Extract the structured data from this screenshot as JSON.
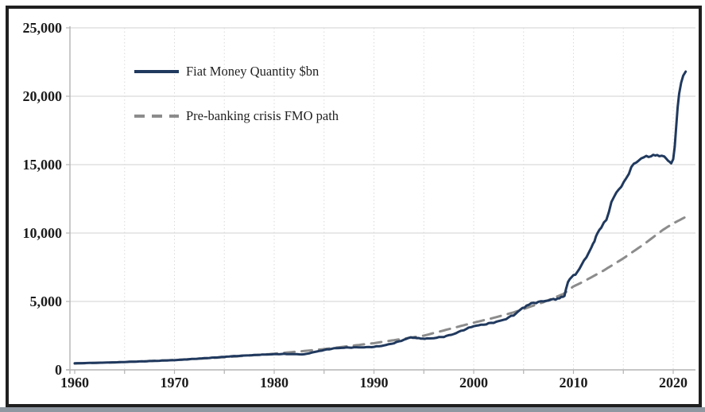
{
  "figure": {
    "background_color": "#ffffff",
    "frame_border_color": "#1f1f1f",
    "bottom_strip_color": "#8f97a1",
    "text_color": "#1c1c1c"
  },
  "chart_data": {
    "type": "line",
    "title": "",
    "xlabel": "",
    "ylabel": "",
    "x_axis": {
      "range": [
        1959.5,
        2022.3
      ],
      "tick_label_years": [
        1960,
        1970,
        1980,
        1990,
        2000,
        2010,
        2020
      ],
      "tick_labels": [
        "1960",
        "1970",
        "1980",
        "1990",
        "2000",
        "2010",
        "2020"
      ],
      "minor_tick_years": [
        1960,
        1965,
        1970,
        1975,
        1980,
        1985,
        1990,
        1995,
        2000,
        2005,
        2010,
        2015,
        2020
      ],
      "gridline_years": [
        1965,
        1970,
        1975,
        1980,
        1985,
        1990,
        1995,
        2000,
        2005,
        2010,
        2015,
        2020
      ],
      "gridline_style": "dotted"
    },
    "y_axis": {
      "range": [
        0,
        25000
      ],
      "tick_values": [
        0,
        5000,
        10000,
        15000,
        20000,
        25000
      ],
      "tick_labels": [
        "0",
        "5,000",
        "10,000",
        "15,000",
        "20,000",
        "25,000"
      ],
      "gridline_values": [
        5000,
        10000,
        15000,
        20000,
        25000
      ],
      "gridline_style": "solid"
    },
    "grid": {
      "color": "#dadada",
      "axis_color": "#b3b3b3"
    },
    "legend": {
      "position": "top-left-inside",
      "items": [
        {
          "label": "Fiat Money Quantity $bn",
          "line_style": "solid",
          "color": "#20395e"
        },
        {
          "label": "Pre-banking crisis FMO path",
          "line_style": "dashed",
          "color": "#8c8c8c"
        }
      ]
    },
    "series": [
      {
        "name": "Fiat Money Quantity $bn",
        "style": "solid",
        "color": "#20395e",
        "width": 3,
        "points": [
          [
            1960,
            480
          ],
          [
            1961,
            495
          ],
          [
            1962,
            510
          ],
          [
            1963,
            530
          ],
          [
            1964,
            550
          ],
          [
            1965,
            575
          ],
          [
            1966,
            600
          ],
          [
            1967,
            625
          ],
          [
            1968,
            650
          ],
          [
            1969,
            680
          ],
          [
            1970,
            710
          ],
          [
            1971,
            755
          ],
          [
            1972,
            800
          ],
          [
            1973,
            850
          ],
          [
            1974,
            900
          ],
          [
            1975,
            950
          ],
          [
            1976,
            1000
          ],
          [
            1977,
            1045
          ],
          [
            1978,
            1080
          ],
          [
            1979,
            1115
          ],
          [
            1980,
            1140
          ],
          [
            1981,
            1160
          ],
          [
            1982,
            1150
          ],
          [
            1983,
            1130
          ],
          [
            1984,
            1300
          ],
          [
            1985,
            1450
          ],
          [
            1986,
            1570
          ],
          [
            1987,
            1620
          ],
          [
            1988,
            1640
          ],
          [
            1989,
            1650
          ],
          [
            1990,
            1680
          ],
          [
            1991,
            1780
          ],
          [
            1992,
            1950
          ],
          [
            1993,
            2200
          ],
          [
            1993.7,
            2380
          ],
          [
            1994.5,
            2300
          ],
          [
            1995.3,
            2280
          ],
          [
            1996,
            2320
          ],
          [
            1997,
            2420
          ],
          [
            1998,
            2620
          ],
          [
            1999,
            2920
          ],
          [
            2000,
            3200
          ],
          [
            2001,
            3310
          ],
          [
            2002,
            3460
          ],
          [
            2003,
            3650
          ],
          [
            2004,
            4000
          ],
          [
            2004.7,
            4400
          ],
          [
            2005.3,
            4700
          ],
          [
            2006,
            4900
          ],
          [
            2007,
            5020
          ],
          [
            2008,
            5150
          ],
          [
            2008.8,
            5280
          ],
          [
            2009.1,
            5400
          ],
          [
            2009.25,
            5900
          ],
          [
            2009.45,
            6450
          ],
          [
            2009.8,
            6750
          ],
          [
            2010.2,
            7000
          ],
          [
            2010.8,
            7600
          ],
          [
            2011.3,
            8300
          ],
          [
            2011.8,
            8900
          ],
          [
            2012.1,
            9400
          ],
          [
            2012.4,
            10050
          ],
          [
            2012.8,
            10400
          ],
          [
            2013.3,
            11000
          ],
          [
            2013.8,
            12200
          ],
          [
            2014.3,
            13000
          ],
          [
            2014.8,
            13400
          ],
          [
            2015.3,
            14000
          ],
          [
            2015.8,
            14800
          ],
          [
            2016.3,
            15200
          ],
          [
            2016.8,
            15450
          ],
          [
            2017.3,
            15600
          ],
          [
            2018,
            15650
          ],
          [
            2018.6,
            15700
          ],
          [
            2019.1,
            15550
          ],
          [
            2019.5,
            15300
          ],
          [
            2019.8,
            15150
          ],
          [
            2020.0,
            15400
          ],
          [
            2020.15,
            16300
          ],
          [
            2020.3,
            17800
          ],
          [
            2020.45,
            19200
          ],
          [
            2020.6,
            20200
          ],
          [
            2020.8,
            21000
          ],
          [
            2021.0,
            21500
          ],
          [
            2021.25,
            21800
          ]
        ]
      },
      {
        "name": "Pre-banking crisis FMO path",
        "style": "dashed",
        "color": "#8c8c8c",
        "width": 3,
        "points": [
          [
            1960,
            460
          ],
          [
            1965,
            570
          ],
          [
            1970,
            720
          ],
          [
            1975,
            920
          ],
          [
            1980,
            1180
          ],
          [
            1983,
            1380
          ],
          [
            1985,
            1520
          ],
          [
            1990,
            1950
          ],
          [
            1995,
            2500
          ],
          [
            2000,
            3450
          ],
          [
            2002,
            3800
          ],
          [
            2004,
            4200
          ],
          [
            2005,
            4450
          ],
          [
            2006,
            4700
          ],
          [
            2007,
            4950
          ],
          [
            2008,
            5250
          ],
          [
            2009,
            5550
          ],
          [
            2010,
            6100
          ],
          [
            2011,
            6450
          ],
          [
            2012,
            6850
          ],
          [
            2013,
            7250
          ],
          [
            2014,
            7700
          ],
          [
            2015,
            8150
          ],
          [
            2016,
            8650
          ],
          [
            2017,
            9150
          ],
          [
            2018,
            9700
          ],
          [
            2019,
            10250
          ],
          [
            2020,
            10700
          ],
          [
            2021.3,
            11200
          ]
        ]
      }
    ]
  }
}
